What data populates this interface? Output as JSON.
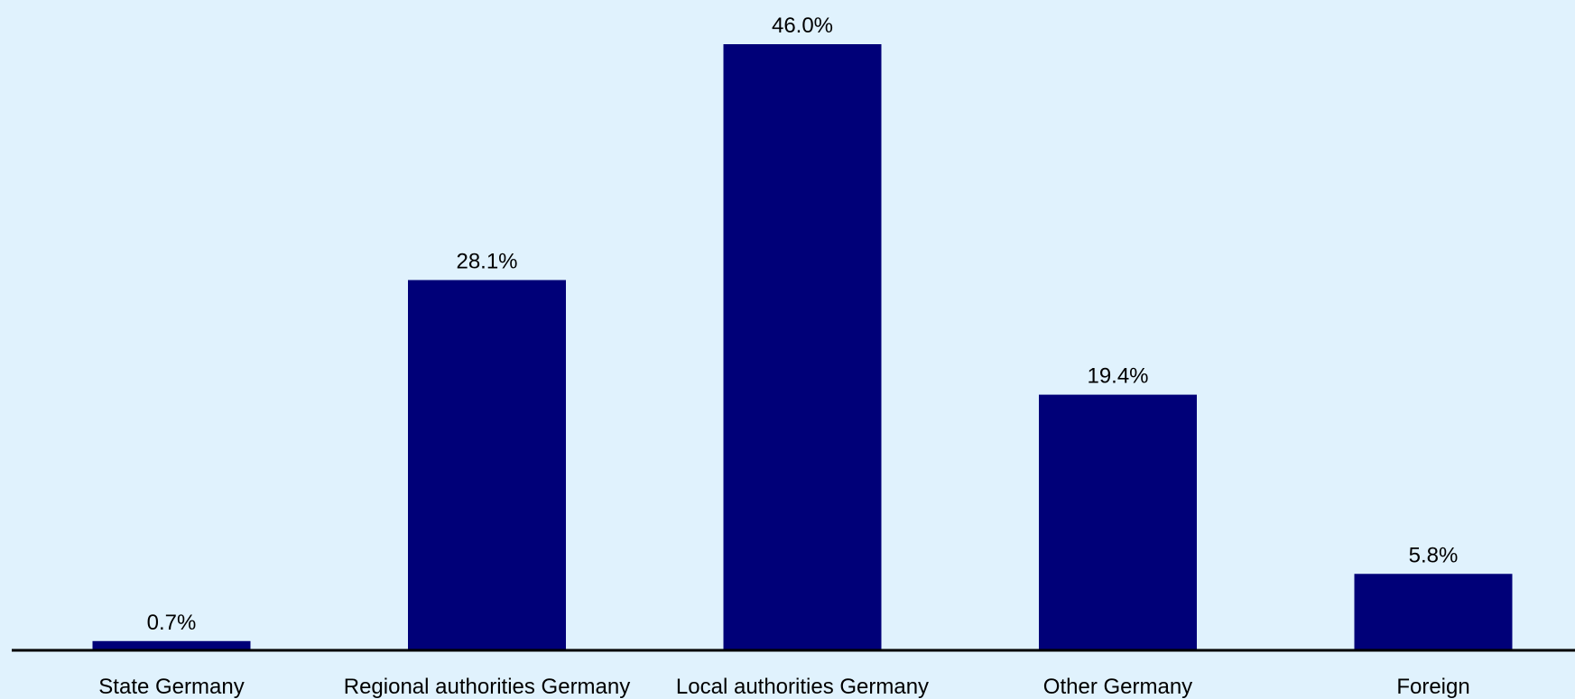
{
  "chart_data": {
    "type": "bar",
    "categories": [
      "State Germany",
      "Regional authorities Germany",
      "Local authorities Germany",
      "Other Germany",
      "Foreign"
    ],
    "values": [
      0.7,
      28.1,
      46.0,
      19.4,
      5.8
    ],
    "value_labels": [
      "0.7%",
      "28.1%",
      "46.0%",
      "19.4%",
      "5.8%"
    ],
    "title": "",
    "xlabel": "",
    "ylabel": "",
    "ylim": [
      0,
      46.0
    ],
    "grid": false,
    "legend": "none",
    "colors": {
      "background": "#E0F2FD",
      "bar": "#000078",
      "axis": "#000000",
      "text": "#000000"
    }
  }
}
